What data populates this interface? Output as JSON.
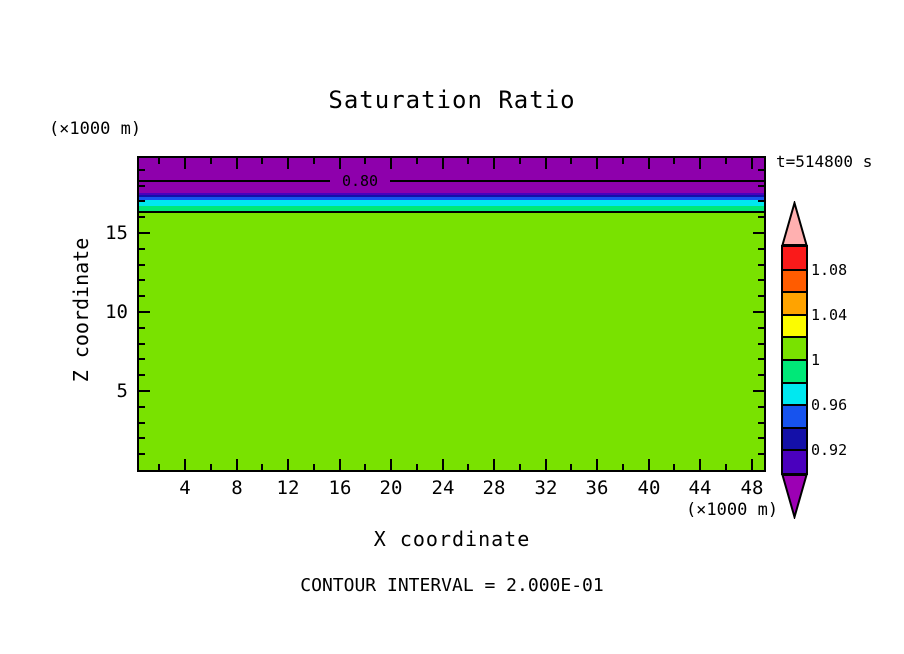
{
  "chart_data": {
    "type": "heatmap",
    "subtype": "filled-contour-plot",
    "title": "Saturation Ratio",
    "xlabel": "X coordinate",
    "ylabel": "Z coordinate",
    "x_units": "(×1000 m)",
    "y_units": "(×1000 m)",
    "time_label": "t=514800 s",
    "contour_interval_label": "CONTOUR INTERVAL = 2.000E-01",
    "x_axis": {
      "range": [
        0,
        49
      ],
      "major_ticks": [
        4,
        8,
        12,
        16,
        20,
        24,
        28,
        32,
        36,
        40,
        44,
        48
      ],
      "minor_ticks": [
        2,
        6,
        10,
        14,
        18,
        22,
        26,
        30,
        34,
        38,
        42,
        46
      ]
    },
    "z_axis": {
      "range": [
        0,
        19.75
      ],
      "major_ticks": [
        5,
        10,
        15
      ],
      "minor_ticks": [
        1,
        2,
        3,
        4,
        6,
        7,
        8,
        9,
        11,
        12,
        13,
        14,
        16,
        17,
        18,
        19
      ]
    },
    "field_description": "Horizontally uniform saturation-ratio field: value below 0.80 near domain top, increasing downward through thin transition layers to about 1.0 over most of the domain",
    "bands": [
      {
        "value": "< 0.90",
        "color": "#8E00AC",
        "z_top": 19.75,
        "z_bottom": 17.53
      },
      {
        "value": "0.90-0.92",
        "color": "#4A00BE",
        "z_top": 17.53,
        "z_bottom": 17.41
      },
      {
        "value": "0.92-0.94",
        "color": "#1410A8",
        "z_top": 17.41,
        "z_bottom": 17.28
      },
      {
        "value": "0.94-0.96",
        "color": "#1753EE",
        "z_top": 17.28,
        "z_bottom": 17.09
      },
      {
        "value": "0.96-0.98",
        "color": "#00E8F0",
        "z_top": 17.09,
        "z_bottom": 16.71
      },
      {
        "value": "0.98-1.00",
        "color": "#00E878",
        "z_top": 16.71,
        "z_bottom": 16.33
      },
      {
        "value": "1.00-1.02",
        "color": "#79E200",
        "z_top": 16.33,
        "z_bottom": 0
      }
    ],
    "contour_lines": [
      {
        "value": 0.8,
        "label": "0.80",
        "z": 18.3,
        "label_center_x": 17.6,
        "label_gap": [
          15.3,
          19.9
        ]
      },
      {
        "value": 1.0,
        "label": "",
        "z": 16.33
      }
    ],
    "colorbar": {
      "segments": [
        {
          "color": "#FA1A1A",
          "range": "1.08-1.10"
        },
        {
          "color": "#FF5C00",
          "range": "1.06-1.08"
        },
        {
          "color": "#FFA300",
          "range": "1.04-1.06"
        },
        {
          "color": "#FCFC00",
          "range": "1.02-1.04"
        },
        {
          "color": "#79E200",
          "range": "1.00-1.02"
        },
        {
          "color": "#00E878",
          "range": "0.98-1.00"
        },
        {
          "color": "#00E8F0",
          "range": "0.96-0.98"
        },
        {
          "color": "#1753EE",
          "range": "0.94-0.96"
        },
        {
          "color": "#1410A8",
          "range": "0.92-0.94"
        },
        {
          "color": "#4A00BE",
          "range": "0.90-0.92"
        }
      ],
      "boundary_labels": [
        {
          "text": "1.08",
          "boundary_index": 1
        },
        {
          "text": "1.04",
          "boundary_index": 3
        },
        {
          "text": "1",
          "boundary_index": 5
        },
        {
          "text": "0.96",
          "boundary_index": 7
        },
        {
          "text": "0.92",
          "boundary_index": 9
        }
      ],
      "over_arrow_color": "#FFB0B0",
      "under_arrow_color": "#9C00B4"
    }
  }
}
